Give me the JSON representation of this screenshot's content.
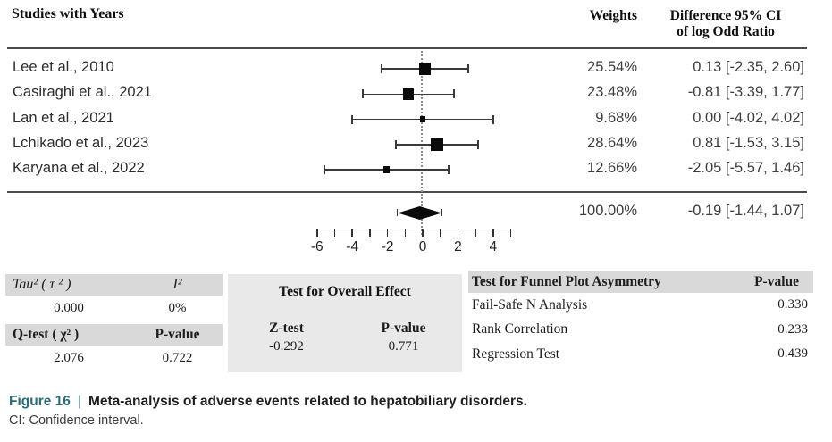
{
  "figure": {
    "caption_label": "Figure 16",
    "caption_separator": "|",
    "caption_text": "Meta-analysis of adverse events related to hepatobiliary disorders.",
    "caption_note": "CI: Confidence interval.",
    "accent_color": "#2e6b76"
  },
  "forest_header": {
    "studies": "Studies with Years",
    "weights": "Weights",
    "effect_line1": "Difference 95% CI",
    "effect_line2": "of log Odd Ratio"
  },
  "chart_data": {
    "type": "forest",
    "effect_measure": "Difference of log Odd Ratio",
    "x_axis": {
      "tick_labels": [
        -6,
        -4,
        -2,
        0,
        2,
        4
      ],
      "minor_tick_step": 1,
      "range": [
        -6,
        5
      ],
      "reference_line": 0
    },
    "studies": [
      {
        "label": "Lee et al., 2010",
        "weight": "25.54%",
        "weight_value": 25.54,
        "estimate": 0.13,
        "ci_low": -2.35,
        "ci_high": 2.6,
        "effect_text": "0.13 [-2.35, 2.60]"
      },
      {
        "label": "Casiraghi et al., 2021",
        "weight": "23.48%",
        "weight_value": 23.48,
        "estimate": -0.81,
        "ci_low": -3.39,
        "ci_high": 1.77,
        "effect_text": "-0.81 [-3.39, 1.77]"
      },
      {
        "label": "Lan et al., 2021",
        "weight": "9.68%",
        "weight_value": 9.68,
        "estimate": 0.0,
        "ci_low": -4.02,
        "ci_high": 4.02,
        "effect_text": "0.00 [-4.02, 4.02]"
      },
      {
        "label": "Lchikado et al., 2023",
        "weight": "28.64%",
        "weight_value": 28.64,
        "estimate": 0.81,
        "ci_low": -1.53,
        "ci_high": 3.15,
        "effect_text": "0.81 [-1.53, 3.15]"
      },
      {
        "label": "Karyana et al., 2022",
        "weight": "12.66%",
        "weight_value": 12.66,
        "estimate": -2.05,
        "ci_low": -5.57,
        "ci_high": 1.46,
        "effect_text": "-2.05 [-5.57, 1.46]"
      }
    ],
    "summary": {
      "weight": "100.00%",
      "estimate": -0.19,
      "ci_low": -1.44,
      "ci_high": 1.07,
      "effect_text": "-0.19 [-1.44, 1.07]"
    }
  },
  "stats": {
    "heterogeneity": {
      "tau2_label": "Tau² ( τ ² )",
      "i2_label": "I²",
      "tau2": "0.000",
      "i2": "0%",
      "q_label": "Q-test ( χ² )",
      "p_label": "P-value",
      "q": "2.076",
      "p": "0.722"
    },
    "overall": {
      "title": "Test for Overall Effect",
      "z_label": "Z-test",
      "p_label": "P-value",
      "z": "-0.292",
      "p": "0.771"
    },
    "funnel": {
      "title": "Test for Funnel Plot Asymmetry",
      "p_label": "P-value",
      "rows": [
        {
          "label": "Fail-Safe N Analysis",
          "p": "0.330"
        },
        {
          "label": "Rank Correlation",
          "p": "0.233"
        },
        {
          "label": "Regression Test",
          "p": "0.439"
        }
      ]
    }
  }
}
